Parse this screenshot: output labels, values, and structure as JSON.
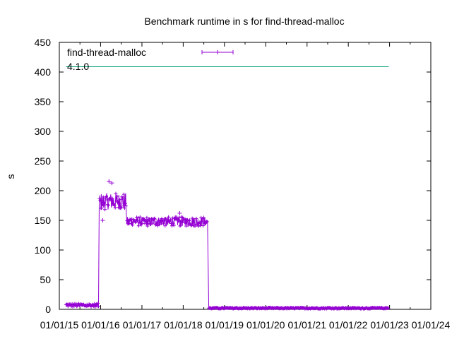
{
  "chart_data": {
    "type": "line",
    "title": "Benchmark runtime in s for find-thread-malloc",
    "xlabel": "",
    "ylabel": "s",
    "ylim": [
      0,
      450
    ],
    "yticks": [
      0,
      50,
      100,
      150,
      200,
      250,
      300,
      350,
      400,
      450
    ],
    "xlim": [
      "2015-01-01",
      "2024-01-01"
    ],
    "xticks": [
      "2015-01-01",
      "2016-01-01",
      "2017-01-01",
      "2018-01-01",
      "2019-01-01",
      "2020-01-01",
      "2021-01-01",
      "2022-01-01",
      "2023-01-01",
      "2024-01-01"
    ],
    "xtick_labels": [
      "01/01/15",
      "01/01/16",
      "01/01/17",
      "01/01/18",
      "01/01/19",
      "01/01/20",
      "01/01/21",
      "01/01/22",
      "01/01/23",
      "01/01/24"
    ],
    "grid": false,
    "legend_position": "top-left",
    "series": [
      {
        "name": "find-thread-malloc",
        "color": "#9400d3",
        "marker": "plus",
        "segments": [
          {
            "start": "2015-03-01",
            "end": "2015-12-15",
            "mean": 7,
            "spread": 3
          },
          {
            "start": "2015-12-20",
            "end": "2016-08-15",
            "mean": 182,
            "spread": 14
          },
          {
            "start": "2016-08-20",
            "end": "2018-08-05",
            "mean": 148,
            "spread": 8
          },
          {
            "start": "2018-08-15",
            "end": "2022-12-25",
            "mean": 2,
            "spread": 1
          }
        ],
        "outliers": [
          {
            "x": "2016-03-15",
            "y": 216
          },
          {
            "x": "2016-04-10",
            "y": 213
          },
          {
            "x": "2016-01-20",
            "y": 150
          },
          {
            "x": "2017-12-01",
            "y": 162
          }
        ]
      },
      {
        "name": "4.1.0",
        "color": "#009e73",
        "marker": "none",
        "x": [
          "2015-03-01",
          "2022-12-25"
        ],
        "y": [
          409,
          409
        ]
      }
    ]
  }
}
